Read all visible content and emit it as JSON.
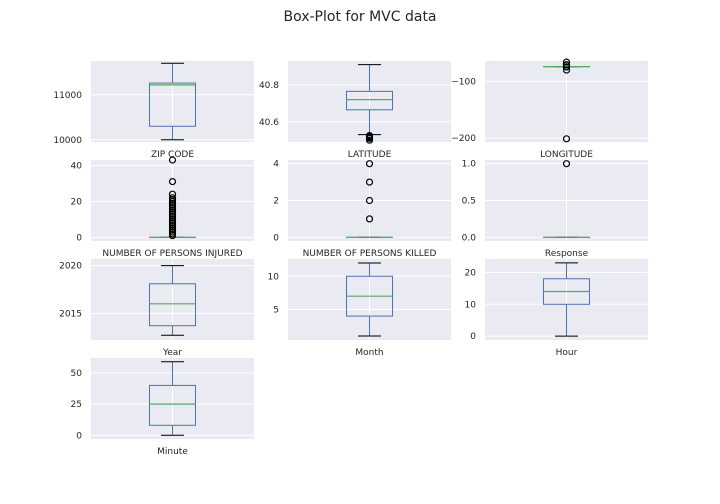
{
  "title": "Box-Plot for MVC data",
  "colors": {
    "panel_bg": "#eaeaf2",
    "grid": "#ffffff",
    "box": "#4c72b0",
    "median": "#55a868",
    "flier": "#000000"
  },
  "chart_data": [
    {
      "type": "box",
      "xlabel": "ZIP CODE",
      "ylim": [
        9950,
        11750
      ],
      "yticks": [
        10000,
        11000
      ],
      "ytick_labels": [
        "10000",
        "11000"
      ],
      "box": {
        "whislo": 10000,
        "q1": 10300,
        "med": 11220,
        "q3": 11260,
        "whishi": 11700
      },
      "fliers": []
    },
    {
      "type": "box",
      "xlabel": "LATITUDE",
      "ylim": [
        40.49,
        40.93
      ],
      "yticks": [
        40.6,
        40.8
      ],
      "ytick_labels": [
        "40.6",
        "40.8"
      ],
      "box": {
        "whislo": 40.53,
        "q1": 40.665,
        "med": 40.72,
        "q3": 40.765,
        "whishi": 40.91
      },
      "fliers": [
        40.5,
        40.51,
        40.515,
        40.52,
        40.525
      ]
    },
    {
      "type": "box",
      "xlabel": "LONGITUDE",
      "ylim": [
        -207,
        -64
      ],
      "yticks": [
        -100,
        -200
      ],
      "ytick_labels": [
        "−100",
        "−200"
      ],
      "box": {
        "whislo": -74.25,
        "q1": -74.05,
        "med": -73.93,
        "q3": -73.87,
        "whishi": -73.7
      },
      "fliers": [
        -74.3,
        -74.5,
        -201.36,
        -80,
        -71,
        -70.5,
        -66
      ]
    },
    {
      "type": "box",
      "xlabel": "NUMBER OF PERSONS INJURED",
      "ylim": [
        -2,
        43
      ],
      "yticks": [
        0,
        20,
        40
      ],
      "ytick_labels": [
        "0",
        "20",
        "40"
      ],
      "box": {
        "whislo": 0,
        "q1": 0,
        "med": 0,
        "q3": 0,
        "whishi": 0
      },
      "fliers": [
        1,
        2,
        3,
        4,
        5,
        6,
        7,
        8,
        9,
        10,
        11,
        12,
        13,
        14,
        15,
        16,
        17,
        18,
        19,
        20,
        21,
        22,
        24,
        31,
        43
      ]
    },
    {
      "type": "box",
      "xlabel": "NUMBER OF PERSONS KILLED",
      "ylim": [
        -0.2,
        4.2
      ],
      "yticks": [
        0,
        2,
        4
      ],
      "ytick_labels": [
        "0",
        "2",
        "4"
      ],
      "box": {
        "whislo": 0,
        "q1": 0,
        "med": 0,
        "q3": 0,
        "whishi": 0
      },
      "fliers": [
        1,
        2,
        3,
        4
      ]
    },
    {
      "type": "box",
      "xlabel": "Response",
      "ylim": [
        -0.05,
        1.05
      ],
      "yticks": [
        0,
        0.5,
        1
      ],
      "ytick_labels": [
        "0.0",
        "0.5",
        "1.0"
      ],
      "box": {
        "whislo": 0,
        "q1": 0,
        "med": 0,
        "q3": 0,
        "whishi": 0
      },
      "fliers": [
        1
      ]
    },
    {
      "type": "box",
      "xlabel": "Year",
      "ylim": [
        2012.2,
        2020.7
      ],
      "yticks": [
        2015,
        2020
      ],
      "ytick_labels": [
        "2015",
        "2020"
      ],
      "box": {
        "whislo": 2012.7,
        "q1": 2013.7,
        "med": 2016,
        "q3": 2018.1,
        "whishi": 2020
      },
      "fliers": []
    },
    {
      "type": "box",
      "xlabel": "Month",
      "ylim": [
        0.4,
        12.6
      ],
      "yticks": [
        5,
        10
      ],
      "ytick_labels": [
        "5",
        "10"
      ],
      "box": {
        "whislo": 1,
        "q1": 4,
        "med": 7,
        "q3": 10,
        "whishi": 12
      },
      "fliers": []
    },
    {
      "type": "box",
      "xlabel": "Hour",
      "ylim": [
        -1.2,
        24.2
      ],
      "yticks": [
        0,
        10,
        20
      ],
      "ytick_labels": [
        "0",
        "10",
        "20"
      ],
      "box": {
        "whislo": 0,
        "q1": 10,
        "med": 14,
        "q3": 18,
        "whishi": 23
      },
      "fliers": []
    },
    {
      "type": "box",
      "xlabel": "Minute",
      "ylim": [
        -3,
        62
      ],
      "yticks": [
        0,
        25,
        50
      ],
      "ytick_labels": [
        "0",
        "25",
        "50"
      ],
      "box": {
        "whislo": 0,
        "q1": 8,
        "med": 25,
        "q3": 40,
        "whishi": 59
      },
      "fliers": []
    }
  ]
}
